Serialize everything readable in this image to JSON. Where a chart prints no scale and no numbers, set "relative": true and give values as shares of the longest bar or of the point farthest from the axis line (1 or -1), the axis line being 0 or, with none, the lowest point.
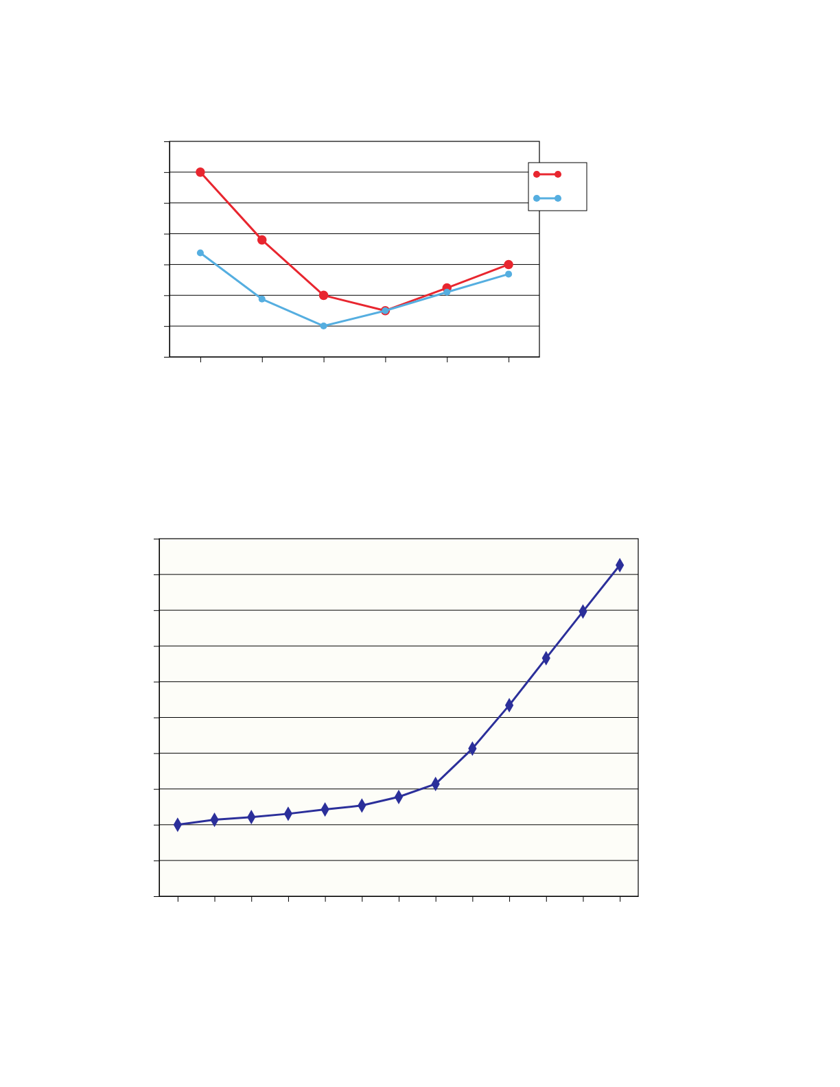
{
  "chart_data": [
    {
      "type": "line",
      "relative": true,
      "categories": [
        null,
        null,
        null,
        null,
        null,
        null
      ],
      "grid": "y",
      "marker": "circle",
      "series": [
        {
          "color": "#e8262f",
          "values": [
            1,
            0.633,
            0.333,
            0.25,
            0.373,
            0.5
          ]
        },
        {
          "color": "#55aee0",
          "values": [
            0.563,
            0.313,
            0.167,
            0.25,
            0.35,
            0.448
          ]
        }
      ]
    },
    {
      "type": "line",
      "relative": true,
      "categories": [
        null,
        null,
        null,
        null,
        null,
        null,
        null,
        null,
        null,
        null,
        null,
        null,
        null
      ],
      "grid": "y",
      "marker": "diamond",
      "series": [
        {
          "color": "#2b2f9a",
          "values": [
            0.216,
            0.231,
            0.239,
            0.249,
            0.262,
            0.274,
            0.3,
            0.339,
            0.446,
            0.577,
            0.719,
            0.86,
            1
          ]
        }
      ]
    }
  ]
}
